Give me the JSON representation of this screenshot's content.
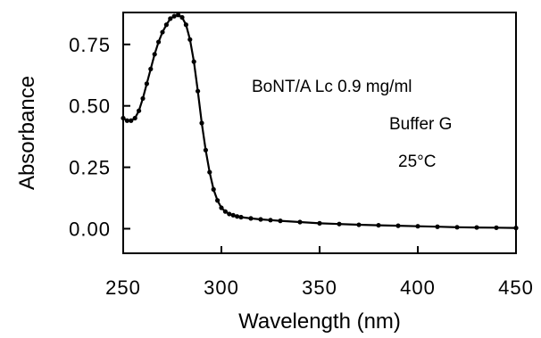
{
  "chart_data": {
    "type": "line",
    "xlabel": "Wavelength  (nm)",
    "ylabel": "Absorbance",
    "xlim": [
      250,
      450
    ],
    "ylim": [
      -0.1,
      0.88
    ],
    "xticks": [
      250,
      300,
      350,
      400,
      450
    ],
    "xtick_labels": [
      "250",
      "300",
      "350",
      "400",
      "450"
    ],
    "yticks": [
      0.0,
      0.25,
      0.5,
      0.75
    ],
    "ytick_labels": [
      "0.00",
      "0.25",
      "0.50",
      "0.75"
    ],
    "grid": false,
    "annotations": [
      "BoNT/A  Lc  0.9  mg/ml",
      "Buffer  G",
      "25°C"
    ],
    "series": [
      {
        "x": [
          250,
          252,
          254,
          256,
          258,
          260,
          262,
          264,
          266,
          268,
          270,
          272,
          274,
          276,
          278,
          280,
          282,
          284,
          286,
          288,
          290,
          292,
          294,
          296,
          298,
          300,
          302,
          304,
          306,
          308,
          310,
          315,
          320,
          325,
          330,
          340,
          350,
          360,
          370,
          380,
          390,
          400,
          410,
          420,
          430,
          440,
          450
        ],
        "y": [
          0.45,
          0.44,
          0.44,
          0.45,
          0.48,
          0.53,
          0.59,
          0.65,
          0.71,
          0.76,
          0.8,
          0.83,
          0.855,
          0.865,
          0.87,
          0.86,
          0.83,
          0.77,
          0.68,
          0.56,
          0.43,
          0.32,
          0.23,
          0.16,
          0.115,
          0.085,
          0.07,
          0.06,
          0.055,
          0.05,
          0.047,
          0.042,
          0.038,
          0.035,
          0.032,
          0.027,
          0.022,
          0.019,
          0.016,
          0.014,
          0.012,
          0.01,
          0.008,
          0.006,
          0.005,
          0.004,
          0.003
        ]
      }
    ]
  }
}
